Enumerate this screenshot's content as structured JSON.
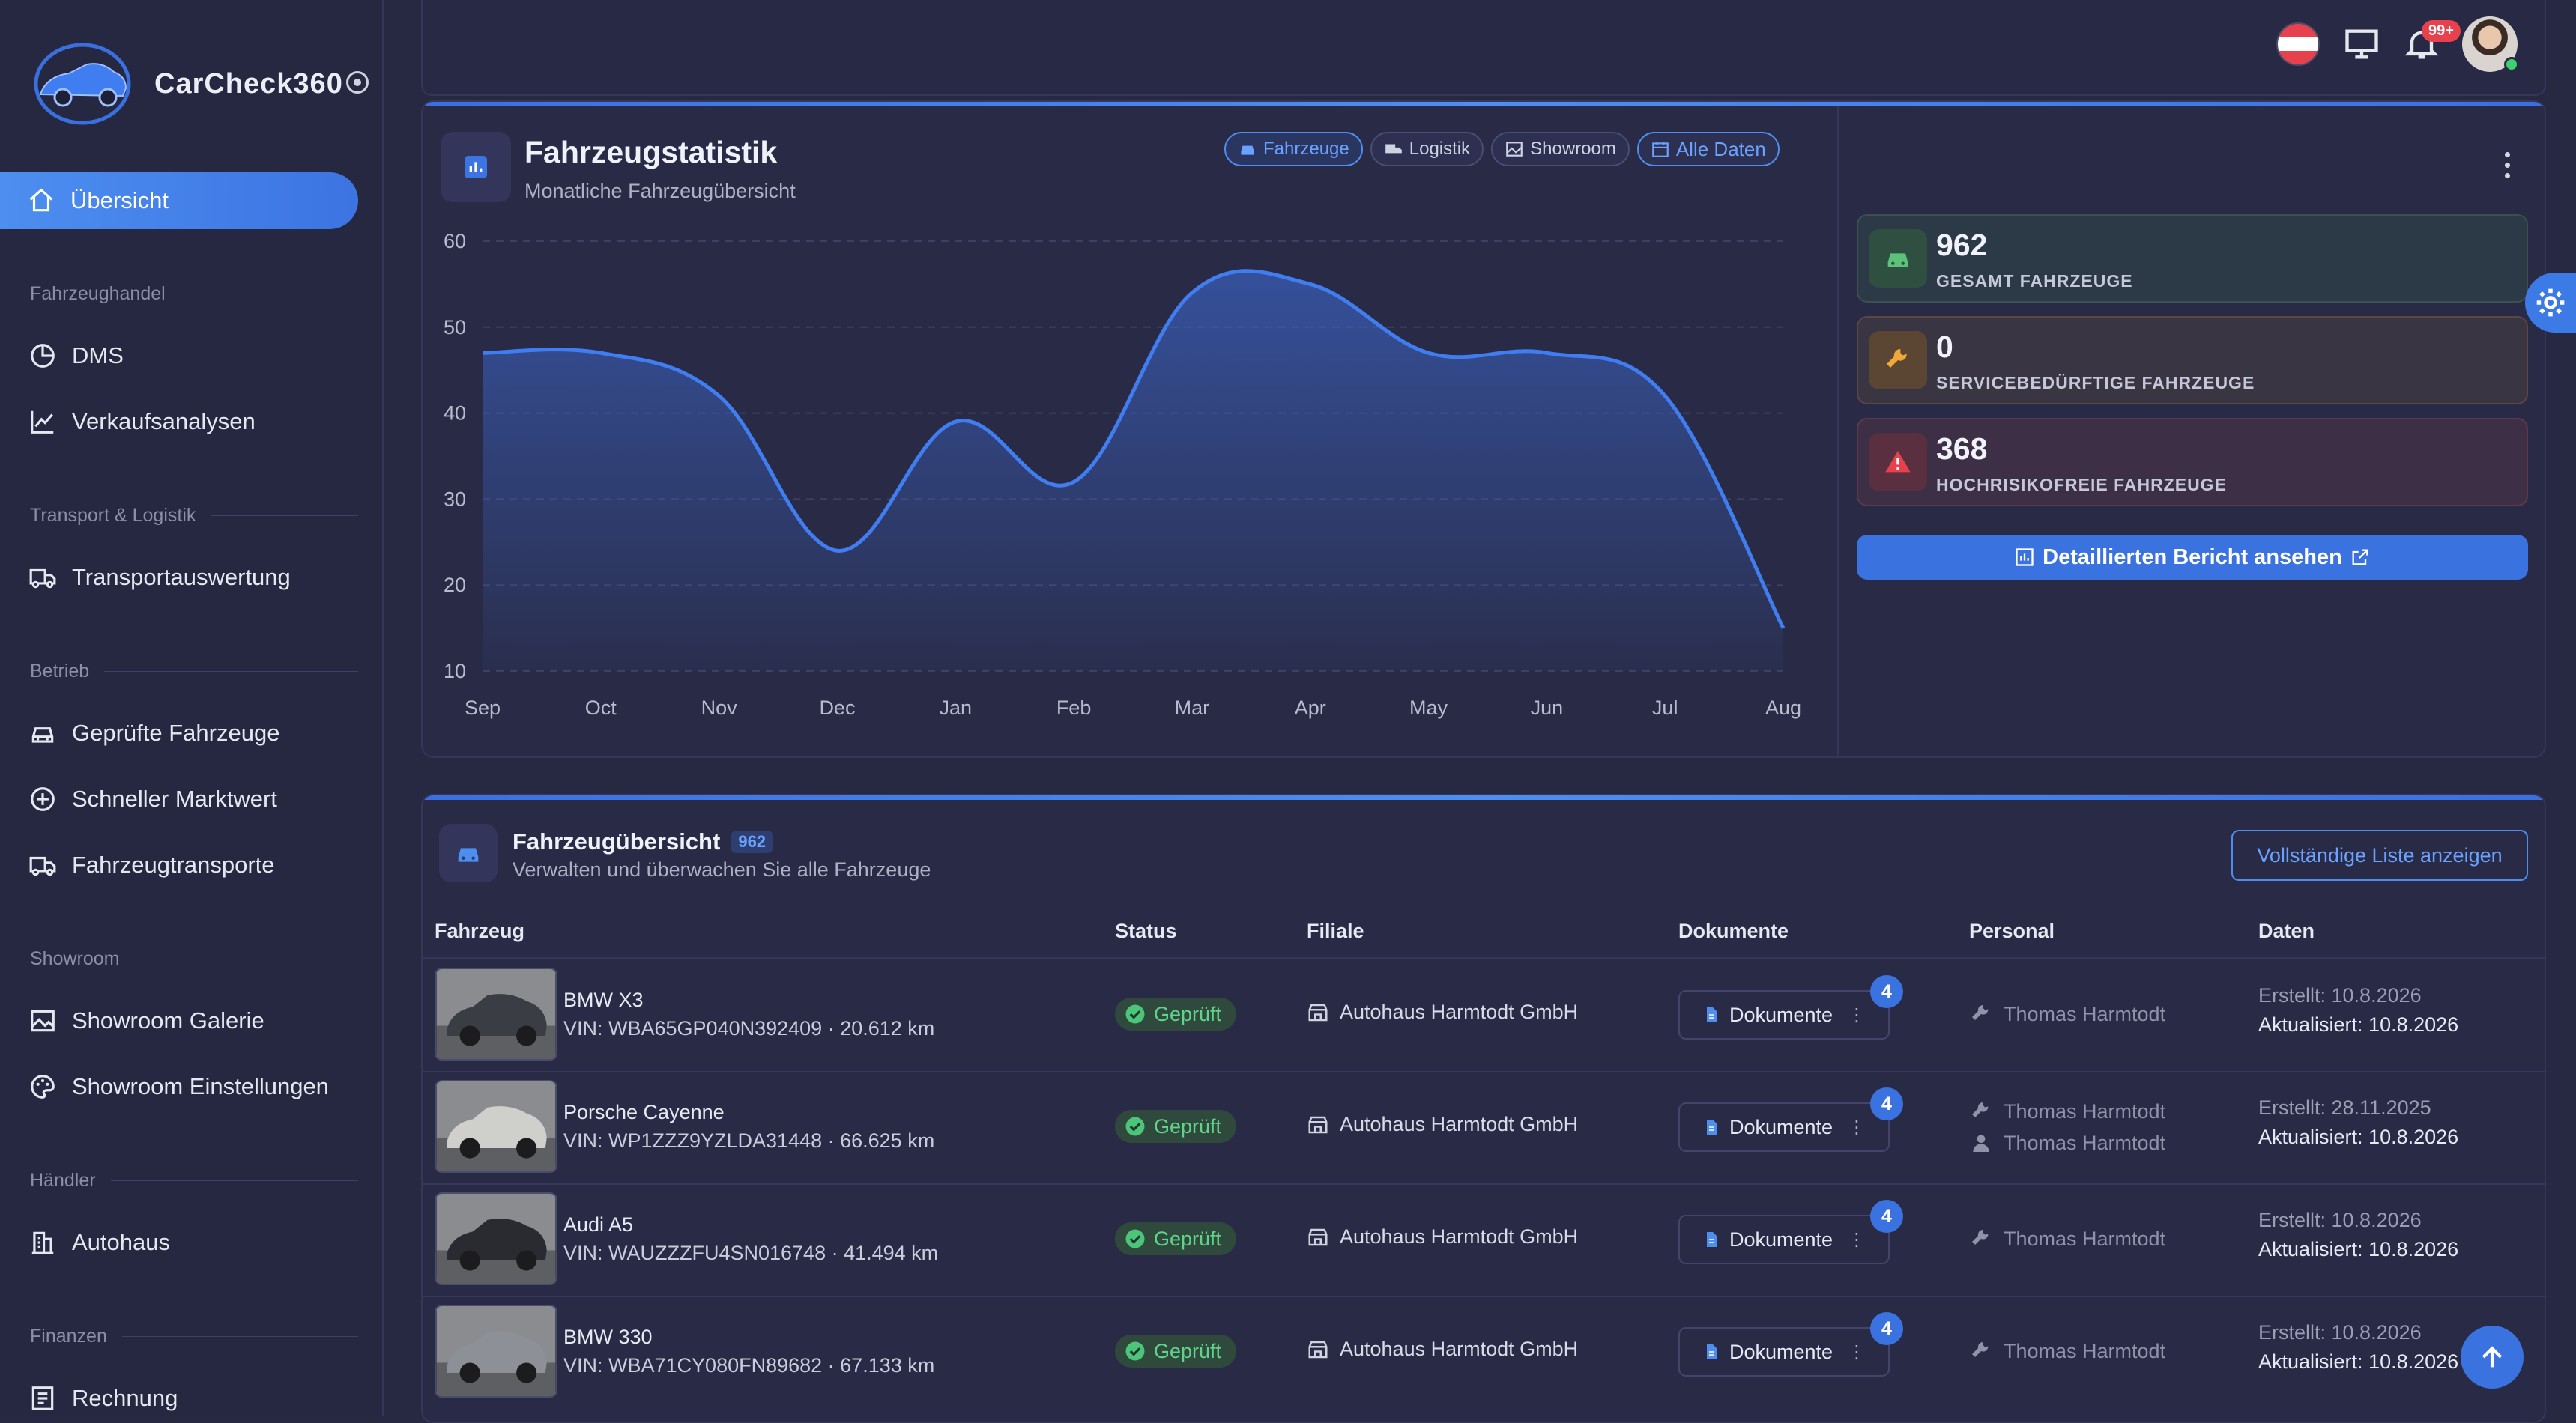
{
  "app": {
    "name": "CarCheck360",
    "brand_color": "#3a72e0"
  },
  "sidebar": {
    "active": {
      "label": "Übersicht",
      "icon": "home-icon"
    },
    "sections": [
      {
        "title": "Fahrzeughandel",
        "items": [
          {
            "label": "DMS",
            "icon": "pie-chart-icon"
          },
          {
            "label": "Verkaufsanalysen",
            "icon": "line-chart-icon"
          }
        ]
      },
      {
        "title": "Transport & Logistik",
        "items": [
          {
            "label": "Transportauswertung",
            "icon": "truck-icon"
          }
        ]
      },
      {
        "title": "Betrieb",
        "items": [
          {
            "label": "Geprüfte Fahrzeuge",
            "icon": "car-icon"
          },
          {
            "label": "Schneller Marktwert",
            "icon": "plus-circle-icon"
          },
          {
            "label": "Fahrzeugtransporte",
            "icon": "truck-icon"
          }
        ]
      },
      {
        "title": "Showroom",
        "items": [
          {
            "label": "Showroom Galerie",
            "icon": "image-icon"
          },
          {
            "label": "Showroom Einstellungen",
            "icon": "palette-icon"
          }
        ]
      },
      {
        "title": "Händler",
        "items": [
          {
            "label": "Autohaus",
            "icon": "building-icon"
          }
        ]
      },
      {
        "title": "Finanzen",
        "items": [
          {
            "label": "Rechnung",
            "icon": "invoice-icon"
          }
        ]
      }
    ]
  },
  "topbar": {
    "notification_badge": "99+"
  },
  "stats": {
    "title": "Fahrzeugstatistik",
    "subtitle": "Monatliche Fahrzeugübersicht",
    "filters": [
      {
        "label": "Fahrzeuge",
        "icon": "car-icon",
        "active": true
      },
      {
        "label": "Logistik",
        "icon": "truck-icon",
        "active": false
      },
      {
        "label": "Showroom",
        "icon": "image-icon",
        "active": false
      }
    ],
    "date_filter": "Alle Daten",
    "kpis": [
      {
        "value": "962",
        "label": "GESAMT FAHRZEUGE",
        "color": "#5cc27a",
        "icon": "car-icon"
      },
      {
        "value": "0",
        "label": "SERVICEBEDÜRFTIGE FAHRZEUGE",
        "color": "#f0a83a",
        "icon": "wrench-icon"
      },
      {
        "value": "368",
        "label": "HOCHRISIKOFREIE FAHRZEUGE",
        "color": "#e8414e",
        "icon": "warning-icon"
      }
    ],
    "report_button": "Detaillierten Bericht ansehen"
  },
  "chart_data": {
    "type": "area",
    "categories": [
      "Sep",
      "Oct",
      "Nov",
      "Dec",
      "Jan",
      "Feb",
      "Mar",
      "Apr",
      "May",
      "Jun",
      "Jul",
      "Aug"
    ],
    "values": [
      47,
      47,
      42,
      24,
      39,
      32,
      54,
      55,
      47,
      47,
      42,
      15
    ],
    "yticks": [
      60,
      50,
      40,
      30,
      20,
      10
    ],
    "ylim": [
      10,
      60
    ],
    "grid": true,
    "line_color": "#3f7df0"
  },
  "vehicles": {
    "title": "Fahrzeugübersicht",
    "count": "962",
    "subtitle": "Verwalten und überwachen Sie alle Fahrzeuge",
    "full_list_button": "Vollständige Liste anzeigen",
    "columns": [
      "Fahrzeug",
      "Status",
      "Filiale",
      "Dokumente",
      "Personal",
      "Daten"
    ],
    "rows": [
      {
        "name": "BMW X3",
        "vin": "VIN: WBA65GP040N392409 · 20.612 km",
        "status": "Geprüft",
        "branch": "Autohaus Harmtodt GmbH",
        "docs": "Dokumente",
        "doc_count": "4",
        "staff": [
          {
            "name": "Thomas Harmtodt",
            "icon": "wrench-icon"
          }
        ],
        "created": "Erstellt: 10.8.2026",
        "updated": "Aktualisiert: 10.8.2026",
        "car_color": "#3a3d44"
      },
      {
        "name": "Porsche Cayenne",
        "vin": "VIN: WP1ZZZ9YZLDA31448 · 66.625 km",
        "status": "Geprüft",
        "branch": "Autohaus Harmtodt GmbH",
        "docs": "Dokumente",
        "doc_count": "4",
        "staff": [
          {
            "name": "Thomas Harmtodt",
            "icon": "wrench-icon"
          },
          {
            "name": "Thomas Harmtodt",
            "icon": "person-icon"
          }
        ],
        "created": "Erstellt: 28.11.2025",
        "updated": "Aktualisiert: 10.8.2026",
        "car_color": "#cfd0cc"
      },
      {
        "name": "Audi A5",
        "vin": "VIN: WAUZZZFU4SN016748 · 41.494 km",
        "status": "Geprüft",
        "branch": "Autohaus Harmtodt GmbH",
        "docs": "Dokumente",
        "doc_count": "4",
        "staff": [
          {
            "name": "Thomas Harmtodt",
            "icon": "wrench-icon"
          }
        ],
        "created": "Erstellt: 10.8.2026",
        "updated": "Aktualisiert: 10.8.2026",
        "car_color": "#2a2b30"
      },
      {
        "name": "BMW 330",
        "vin": "VIN: WBA71CY080FN89682 · 67.133 km",
        "status": "Geprüft",
        "branch": "Autohaus Harmtodt GmbH",
        "docs": "Dokumente",
        "doc_count": "4",
        "staff": [
          {
            "name": "Thomas Harmtodt",
            "icon": "wrench-icon"
          }
        ],
        "created": "Erstellt: 10.8.2026",
        "updated": "Aktualisiert: 10.8.2026",
        "car_color": "#8d9096"
      }
    ]
  }
}
